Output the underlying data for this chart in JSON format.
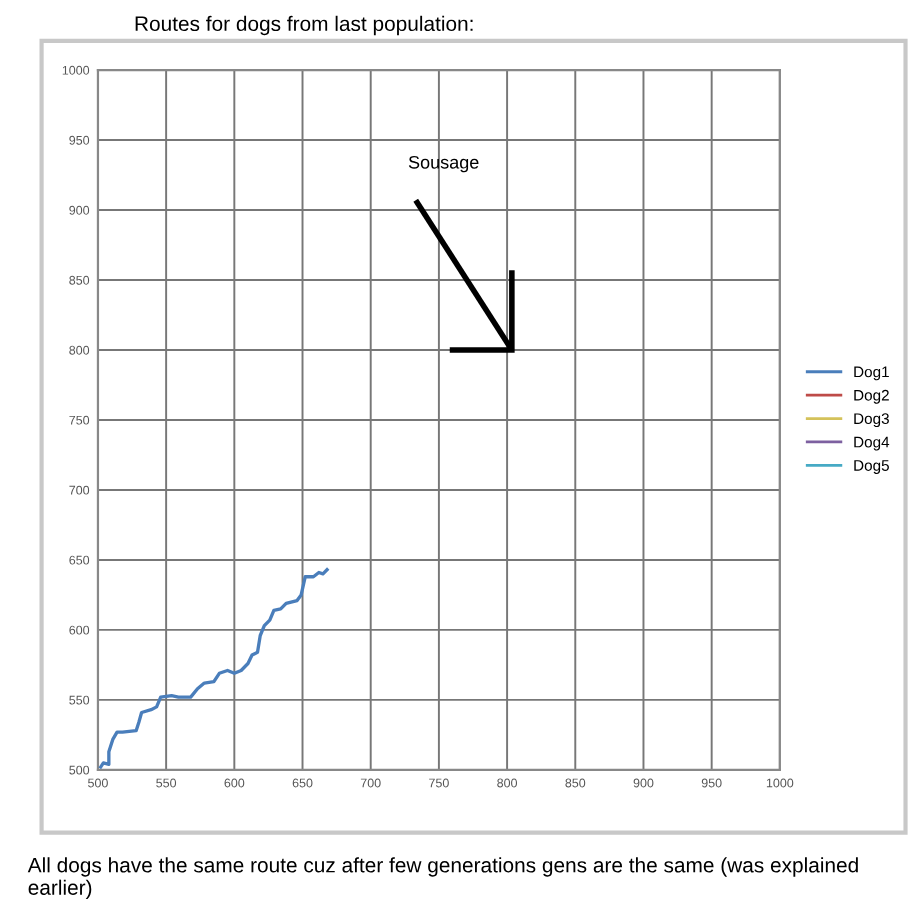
{
  "chart_data": {
    "type": "line",
    "title": "Routes for dogs from last population:",
    "x": [
      502,
      504,
      508,
      508,
      511,
      514,
      518,
      528,
      530,
      532,
      539,
      543,
      546,
      554,
      559,
      564,
      568,
      573,
      578,
      585,
      589,
      595,
      600,
      605,
      610,
      613,
      617,
      619,
      622,
      626,
      629,
      634,
      638,
      646,
      649,
      652,
      658,
      662,
      665,
      668
    ],
    "series": [
      {
        "name": "Dog1",
        "color": "#4a7ebb",
        "values": [
          502,
          505,
          504,
          513,
          522,
          527,
          527,
          528,
          534,
          541,
          543,
          545,
          552,
          553,
          552,
          552,
          552,
          558,
          562,
          563,
          569,
          571,
          569,
          571,
          576,
          582,
          584,
          596,
          603,
          607,
          614,
          615,
          619,
          621,
          625,
          638,
          638,
          641,
          640,
          643
        ]
      },
      {
        "name": "Dog2",
        "color": "#be4b48",
        "values": [
          null,
          null,
          null,
          null,
          null,
          null,
          null,
          null,
          null,
          null,
          null,
          null,
          null,
          null,
          null,
          null,
          null,
          null,
          null,
          null,
          null,
          null,
          null,
          null,
          null,
          null,
          null,
          null,
          null,
          null,
          null,
          null,
          null,
          null,
          null,
          null,
          null,
          null,
          null,
          null
        ]
      },
      {
        "name": "Dog3",
        "color": "#d4c25a",
        "values": [
          null,
          null,
          null,
          null,
          null,
          null,
          null,
          null,
          null,
          null,
          null,
          null,
          null,
          null,
          null,
          null,
          null,
          null,
          null,
          null,
          null,
          null,
          null,
          null,
          null,
          null,
          null,
          null,
          null,
          null,
          null,
          null,
          null,
          null,
          null,
          null,
          null,
          null,
          null,
          null
        ]
      },
      {
        "name": "Dog4",
        "color": "#7d60a0",
        "values": [
          null,
          null,
          null,
          null,
          null,
          null,
          null,
          null,
          null,
          null,
          null,
          null,
          null,
          null,
          null,
          null,
          null,
          null,
          null,
          null,
          null,
          null,
          null,
          null,
          null,
          null,
          null,
          null,
          null,
          null,
          null,
          null,
          null,
          null,
          null,
          null,
          null,
          null,
          null,
          null
        ]
      },
      {
        "name": "Dog5",
        "color": "#46aac5",
        "values": [
          null,
          null,
          null,
          null,
          null,
          null,
          null,
          null,
          null,
          null,
          null,
          null,
          null,
          null,
          null,
          null,
          null,
          null,
          null,
          null,
          null,
          null,
          null,
          null,
          null,
          null,
          null,
          null,
          null,
          null,
          null,
          null,
          null,
          null,
          null,
          null,
          null,
          null,
          null,
          null
        ]
      }
    ],
    "xlim": [
      500,
      1000
    ],
    "ylim": [
      500,
      1000
    ],
    "xticks": [
      500,
      550,
      600,
      650,
      700,
      750,
      800,
      850,
      900,
      950,
      1000
    ],
    "yticks": [
      500,
      550,
      600,
      650,
      700,
      750,
      800,
      850,
      900,
      950,
      1000
    ],
    "grid": true,
    "legend": "right",
    "marker": "none",
    "line_style": "solid",
    "annotations": [
      "Sousage",
      "All dogs have the same route cuz after few generations gens are the same (was explained earlier)"
    ]
  }
}
